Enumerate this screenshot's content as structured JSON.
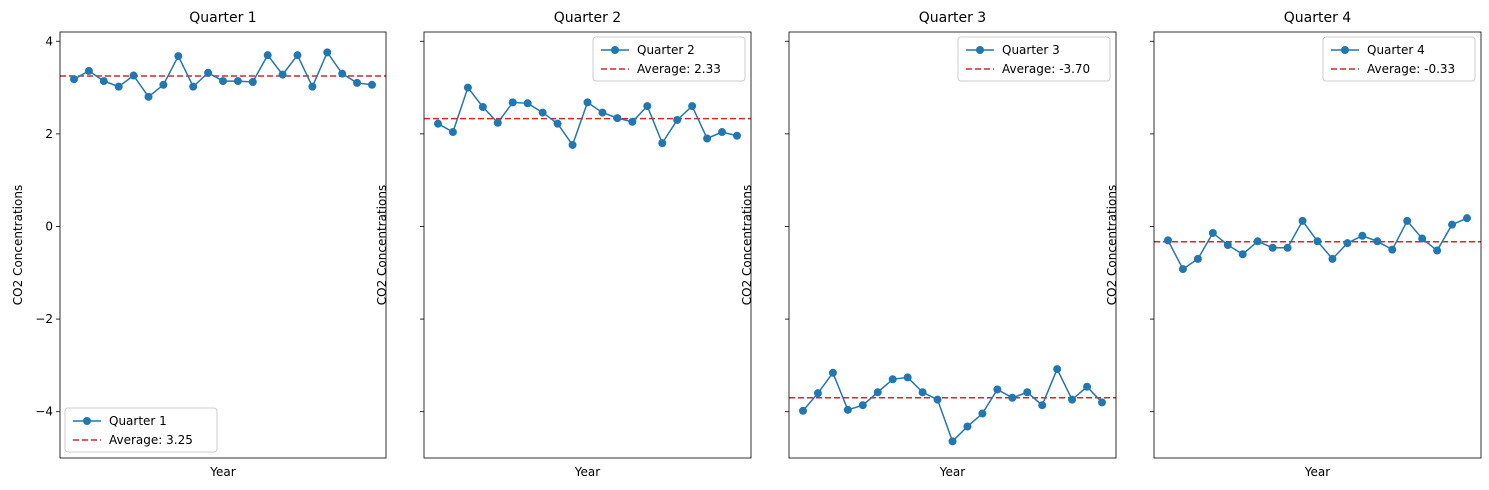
{
  "colors": {
    "series": "#1f77b4",
    "average": "#d62728",
    "legend_border": "#cccccc"
  },
  "chart_data": [
    {
      "type": "line",
      "title": "Quarter 1",
      "xlabel": "Year",
      "ylabel": "CO2 Concentrations",
      "ylim": [
        -5,
        4.2
      ],
      "yticks": [
        4,
        2,
        0,
        -2,
        -4
      ],
      "ytick_labels": [
        "4",
        "2",
        "0",
        "−2",
        "−4"
      ],
      "show_ytick_labels": true,
      "legend_position": "lower-left",
      "series": [
        {
          "name": "Quarter 1",
          "values": [
            3.18,
            3.36,
            3.14,
            3.02,
            3.26,
            2.8,
            3.06,
            3.68,
            3.02,
            3.32,
            3.14,
            3.14,
            3.12,
            3.7,
            3.28,
            3.7,
            3.02,
            3.76,
            3.3,
            3.1,
            3.06
          ]
        }
      ],
      "average": {
        "label": "Average: 3.25",
        "value": 3.25
      }
    },
    {
      "type": "line",
      "title": "Quarter 2",
      "xlabel": "Year",
      "ylabel": "CO2 Concentrations",
      "ylim": [
        -5,
        4.2
      ],
      "yticks": [
        4,
        2,
        0,
        -2,
        -4
      ],
      "ytick_labels": [
        "4",
        "2",
        "0",
        "−2",
        "−4"
      ],
      "show_ytick_labels": false,
      "legend_position": "upper-right",
      "series": [
        {
          "name": "Quarter 2",
          "values": [
            2.22,
            2.04,
            3.0,
            2.58,
            2.24,
            2.68,
            2.66,
            2.46,
            2.22,
            1.76,
            2.68,
            2.46,
            2.34,
            2.26,
            2.6,
            1.8,
            2.3,
            2.6,
            1.9,
            2.04,
            1.96
          ]
        }
      ],
      "average": {
        "label": "Average: 2.33",
        "value": 2.33
      }
    },
    {
      "type": "line",
      "title": "Quarter 3",
      "xlabel": "Year",
      "ylabel": "CO2 Concentrations",
      "ylim": [
        -5,
        4.2
      ],
      "yticks": [
        4,
        2,
        0,
        -2,
        -4
      ],
      "ytick_labels": [
        "4",
        "2",
        "0",
        "−2",
        "−4"
      ],
      "show_ytick_labels": false,
      "legend_position": "upper-right",
      "series": [
        {
          "name": "Quarter 3",
          "values": [
            -3.98,
            -3.6,
            -3.16,
            -3.96,
            -3.86,
            -3.58,
            -3.3,
            -3.26,
            -3.58,
            -3.74,
            -4.64,
            -4.32,
            -4.04,
            -3.52,
            -3.7,
            -3.58,
            -3.86,
            -3.08,
            -3.74,
            -3.46,
            -3.8
          ]
        }
      ],
      "average": {
        "label": "Average: -3.70",
        "value": -3.7
      }
    },
    {
      "type": "line",
      "title": "Quarter 4",
      "xlabel": "Year",
      "ylabel": "CO2 Concentrations",
      "ylim": [
        -5,
        4.2
      ],
      "yticks": [
        4,
        2,
        0,
        -2,
        -4
      ],
      "ytick_labels": [
        "4",
        "2",
        "0",
        "−2",
        "−4"
      ],
      "show_ytick_labels": false,
      "legend_position": "upper-right",
      "series": [
        {
          "name": "Quarter 4",
          "values": [
            -0.3,
            -0.92,
            -0.7,
            -0.14,
            -0.4,
            -0.6,
            -0.32,
            -0.46,
            -0.46,
            0.12,
            -0.32,
            -0.7,
            -0.36,
            -0.2,
            -0.32,
            -0.5,
            0.12,
            -0.26,
            -0.52,
            0.04,
            0.18
          ]
        }
      ],
      "average": {
        "label": "Average: -0.33",
        "value": -0.33
      }
    }
  ]
}
